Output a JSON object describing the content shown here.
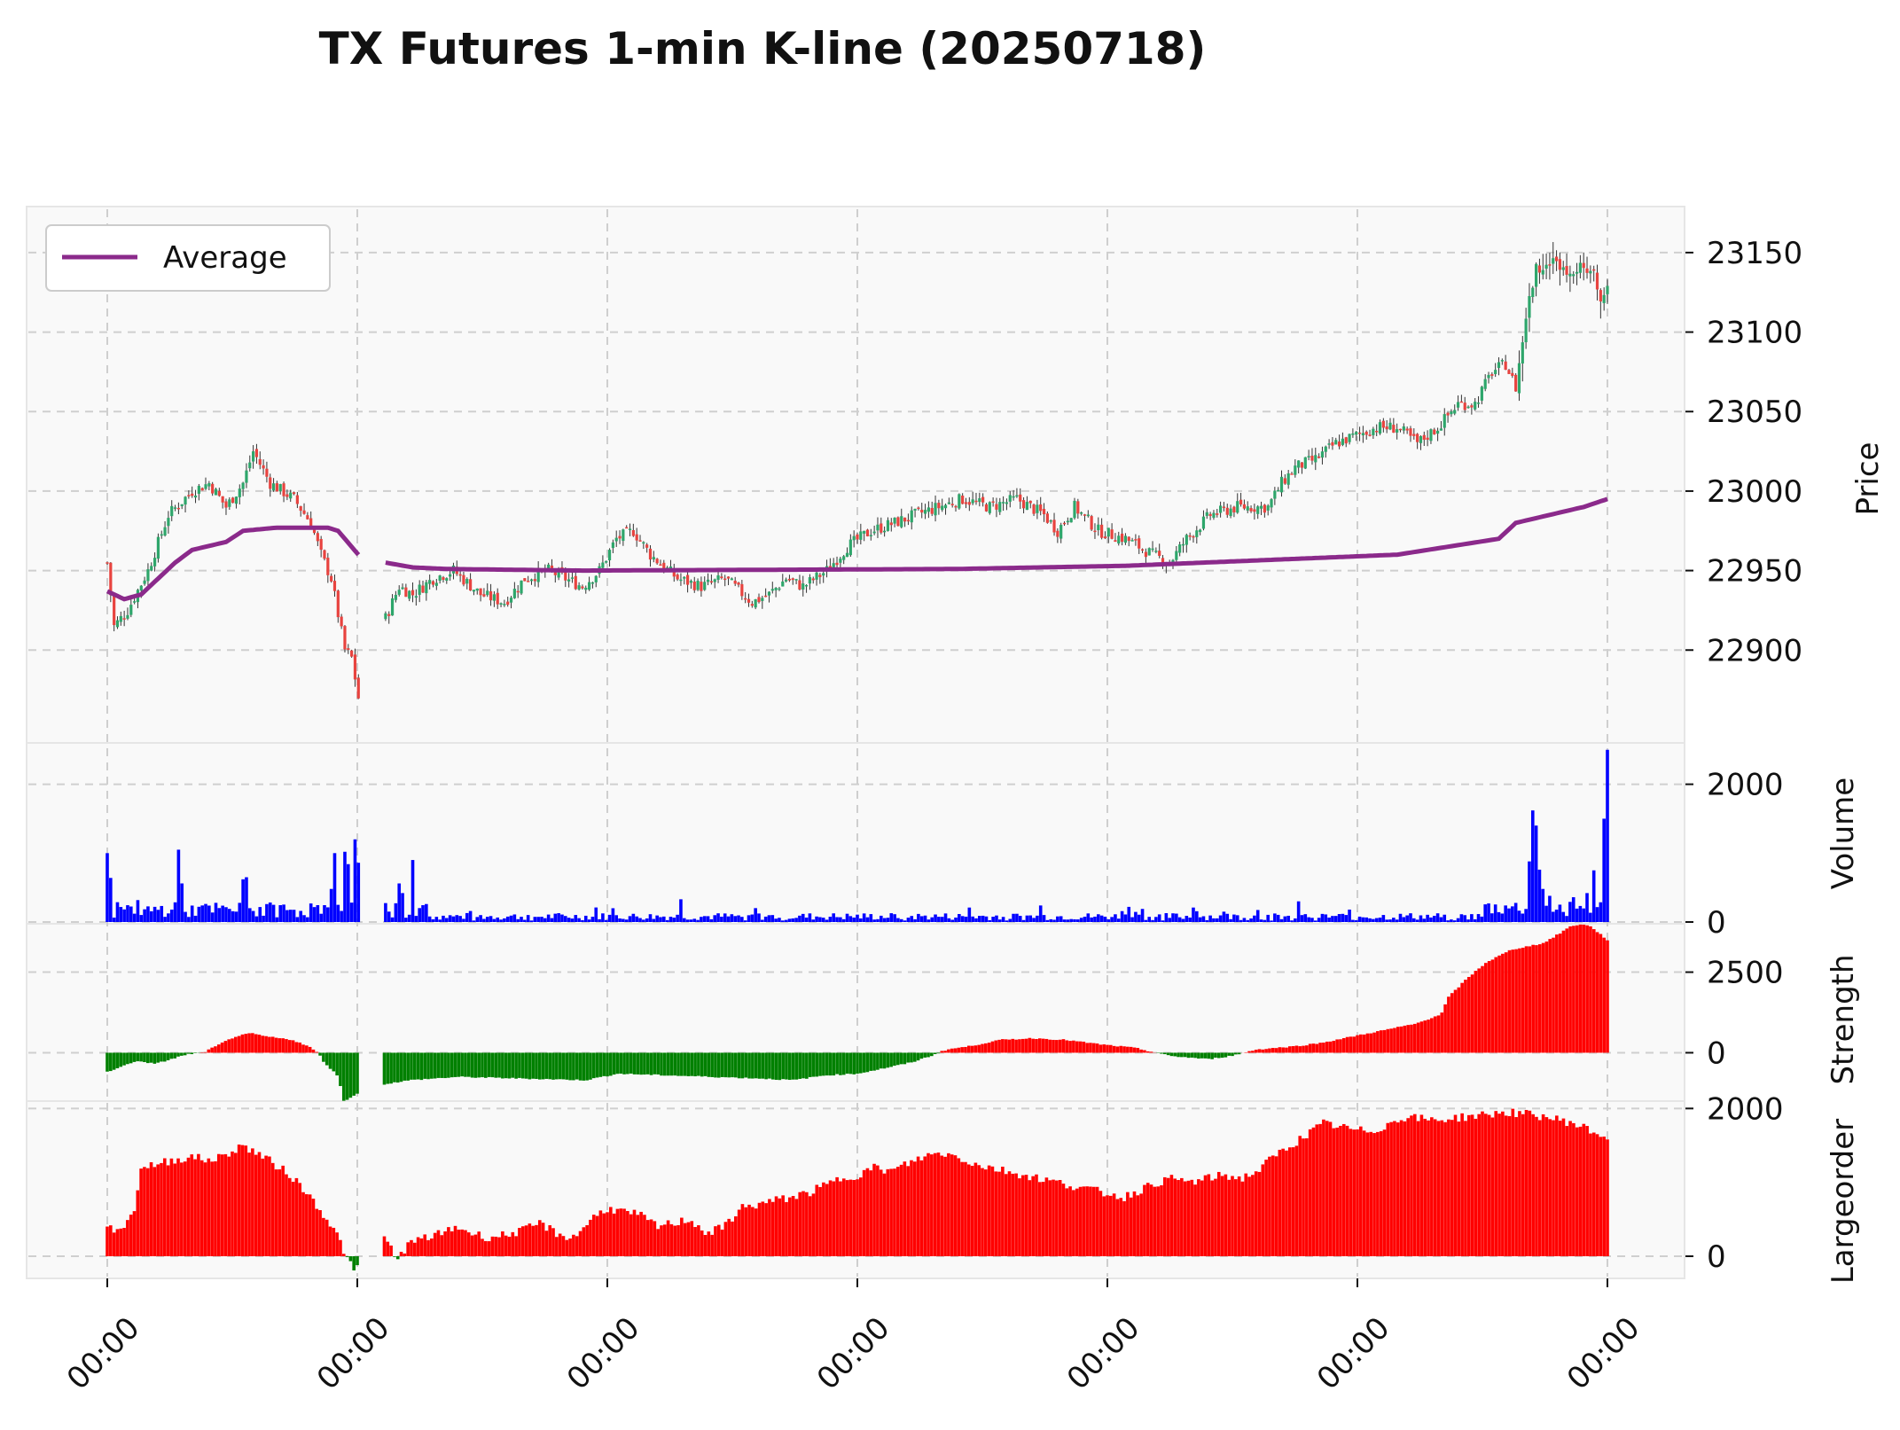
{
  "chart_data": {
    "type": "candlestick",
    "title": "TX Futures 1-min K-line (20250718)",
    "x_tick_labels": [
      "00:00",
      "00:00",
      "00:00",
      "00:00",
      "00:00",
      "00:00",
      "00:00"
    ],
    "legend": {
      "placement": "top-left",
      "entries": [
        "Average"
      ]
    },
    "colors": {
      "up": "#2ea66b",
      "down": "#e8433f",
      "average": "#8b2a8b",
      "volume": "#0000ff",
      "positive": "#ff0000",
      "negative": "#008000"
    },
    "panels": [
      {
        "name": "price",
        "ylabel": "Price",
        "ylim": [
          22860,
          23165
        ],
        "ticks": [
          22900,
          22950,
          23000,
          23050,
          23100,
          23150
        ],
        "close_anchors": [
          [
            0,
            22955
          ],
          [
            2,
            22915
          ],
          [
            6,
            22925
          ],
          [
            12,
            22950
          ],
          [
            18,
            22985
          ],
          [
            25,
            23000
          ],
          [
            30,
            23005
          ],
          [
            35,
            22990
          ],
          [
            40,
            23005
          ],
          [
            43,
            23025
          ],
          [
            48,
            23005
          ],
          [
            55,
            22995
          ],
          [
            60,
            22980
          ],
          [
            63,
            22960
          ],
          [
            66,
            22945
          ],
          [
            70,
            22900
          ],
          [
            72,
            22895
          ],
          [
            74,
            22870
          ],
          [
            78,
            22880
          ],
          [
            82,
            22920
          ],
          [
            86,
            22940
          ],
          [
            90,
            22935
          ],
          [
            96,
            22945
          ],
          [
            102,
            22950
          ],
          [
            110,
            22935
          ],
          [
            117,
            22930
          ],
          [
            123,
            22945
          ],
          [
            130,
            22950
          ],
          [
            135,
            22945
          ],
          [
            140,
            22940
          ],
          [
            145,
            22950
          ],
          [
            150,
            22970
          ],
          [
            155,
            22975
          ],
          [
            160,
            22960
          ],
          [
            168,
            22945
          ],
          [
            175,
            22940
          ],
          [
            182,
            22945
          ],
          [
            190,
            22930
          ],
          [
            195,
            22935
          ],
          [
            200,
            22945
          ],
          [
            205,
            22940
          ],
          [
            212,
            22950
          ],
          [
            218,
            22965
          ],
          [
            225,
            22975
          ],
          [
            232,
            22980
          ],
          [
            238,
            22985
          ],
          [
            245,
            22990
          ],
          [
            252,
            22995
          ],
          [
            260,
            22990
          ],
          [
            268,
            22995
          ],
          [
            276,
            22985
          ],
          [
            280,
            22975
          ],
          [
            285,
            22990
          ],
          [
            292,
            22975
          ],
          [
            300,
            22970
          ],
          [
            308,
            22960
          ],
          [
            313,
            22955
          ],
          [
            318,
            22970
          ],
          [
            325,
            22985
          ],
          [
            333,
            22990
          ],
          [
            342,
            22990
          ],
          [
            346,
            23005
          ],
          [
            350,
            23015
          ],
          [
            356,
            23020
          ],
          [
            362,
            23030
          ],
          [
            368,
            23035
          ],
          [
            374,
            23040
          ],
          [
            380,
            23040
          ],
          [
            386,
            23030
          ],
          [
            392,
            23040
          ],
          [
            398,
            23055
          ],
          [
            403,
            23055
          ],
          [
            408,
            23075
          ],
          [
            412,
            23080
          ],
          [
            415,
            23065
          ],
          [
            418,
            23110
          ],
          [
            421,
            23140
          ],
          [
            425,
            23145
          ],
          [
            430,
            23140
          ],
          [
            435,
            23140
          ],
          [
            438,
            23135
          ],
          [
            440,
            23120
          ],
          [
            442,
            23130
          ]
        ],
        "average_segments": [
          [
            [
              0,
              22937
            ],
            [
              5,
              22932
            ],
            [
              10,
              22935
            ],
            [
              20,
              22955
            ],
            [
              25,
              22963
            ],
            [
              35,
              22968
            ],
            [
              40,
              22975
            ],
            [
              50,
              22977
            ],
            [
              65,
              22977
            ],
            [
              68,
              22975
            ],
            [
              72,
              22965
            ],
            [
              74,
              22960
            ]
          ],
          [
            [
              82,
              22955
            ],
            [
              90,
              22952
            ],
            [
              100,
              22951
            ],
            [
              140,
              22950
            ],
            [
              250,
              22951
            ],
            [
              300,
              22953
            ],
            [
              380,
              22960
            ],
            [
              410,
              22970
            ],
            [
              415,
              22980
            ],
            [
              425,
              22985
            ],
            [
              435,
              22990
            ],
            [
              442,
              22995
            ]
          ]
        ]
      },
      {
        "name": "volume",
        "ylabel": "Volume",
        "ylim": [
          0,
          2600
        ],
        "ticks": [
          0,
          2000
        ],
        "spikes": [
          [
            0,
            1000
          ],
          [
            1,
            640
          ],
          [
            21,
            1050
          ],
          [
            22,
            560
          ],
          [
            40,
            620
          ],
          [
            41,
            650
          ],
          [
            66,
            480
          ],
          [
            67,
            1000
          ],
          [
            70,
            1020
          ],
          [
            71,
            840
          ],
          [
            73,
            1200
          ],
          [
            74,
            860
          ],
          [
            86,
            560
          ],
          [
            87,
            420
          ],
          [
            90,
            900
          ],
          [
            149,
            200
          ],
          [
            169,
            330
          ],
          [
            254,
            210
          ],
          [
            275,
            240
          ],
          [
            301,
            220
          ],
          [
            305,
            190
          ],
          [
            320,
            210
          ],
          [
            329,
            150
          ],
          [
            351,
            300
          ],
          [
            366,
            180
          ],
          [
            412,
            240
          ],
          [
            419,
            880
          ],
          [
            420,
            1620
          ],
          [
            421,
            1400
          ],
          [
            422,
            760
          ],
          [
            438,
            750
          ],
          [
            441,
            1500
          ],
          [
            442,
            2500
          ],
          [
            423,
            480
          ],
          [
            425,
            380
          ],
          [
            432,
            360
          ],
          [
            436,
            420
          ]
        ]
      },
      {
        "name": "strength",
        "ylabel": "Strength",
        "ylim": [
          -1500,
          4000
        ],
        "ticks": [
          0,
          2500
        ],
        "anchors": [
          [
            0,
            -600
          ],
          [
            5,
            -400
          ],
          [
            10,
            -250
          ],
          [
            15,
            -350
          ],
          [
            20,
            -200
          ],
          [
            25,
            -50
          ],
          [
            30,
            0
          ],
          [
            36,
            300
          ],
          [
            40,
            500
          ],
          [
            45,
            600
          ],
          [
            50,
            500
          ],
          [
            58,
            400
          ],
          [
            63,
            200
          ],
          [
            66,
            0
          ],
          [
            68,
            -300
          ],
          [
            70,
            -500
          ],
          [
            72,
            -700
          ],
          [
            73,
            -1000
          ],
          [
            74,
            -1500
          ],
          [
            82,
            -1100
          ],
          [
            85,
            -1000
          ],
          [
            95,
            -850
          ],
          [
            110,
            -750
          ],
          [
            130,
            -800
          ],
          [
            150,
            -850
          ],
          [
            160,
            -650
          ],
          [
            175,
            -700
          ],
          [
            190,
            -750
          ],
          [
            205,
            -800
          ],
          [
            215,
            -850
          ],
          [
            225,
            -700
          ],
          [
            235,
            -650
          ],
          [
            245,
            -450
          ],
          [
            252,
            -300
          ],
          [
            258,
            -100
          ],
          [
            263,
            100
          ],
          [
            270,
            200
          ],
          [
            280,
            400
          ],
          [
            290,
            450
          ],
          [
            300,
            400
          ],
          [
            312,
            250
          ],
          [
            322,
            150
          ],
          [
            333,
            -100
          ],
          [
            345,
            -200
          ],
          [
            352,
            -100
          ],
          [
            360,
            100
          ],
          [
            372,
            200
          ],
          [
            380,
            300
          ],
          [
            390,
            500
          ],
          [
            400,
            700
          ],
          [
            410,
            900
          ],
          [
            418,
            1200
          ],
          [
            420,
            1700
          ],
          [
            426,
            2300
          ],
          [
            432,
            2800
          ],
          [
            440,
            3200
          ],
          [
            450,
            3400
          ],
          [
            455,
            3700
          ],
          [
            458,
            3900
          ],
          [
            462,
            4000
          ],
          [
            465,
            3900
          ],
          [
            470,
            3500
          ]
        ]
      },
      {
        "name": "largeorder",
        "ylabel": "Largeorder",
        "ylim": [
          -300,
          2100
        ],
        "ticks": [
          0,
          2000
        ],
        "anchors": [
          [
            0,
            350
          ],
          [
            5,
            400
          ],
          [
            8,
            600
          ],
          [
            10,
            1200
          ],
          [
            15,
            1250
          ],
          [
            20,
            1300
          ],
          [
            25,
            1350
          ],
          [
            30,
            1300
          ],
          [
            35,
            1350
          ],
          [
            40,
            1500
          ],
          [
            45,
            1400
          ],
          [
            50,
            1250
          ],
          [
            55,
            1100
          ],
          [
            58,
            950
          ],
          [
            62,
            750
          ],
          [
            66,
            500
          ],
          [
            70,
            200
          ],
          [
            72,
            -50
          ],
          [
            74,
            -200
          ],
          [
            82,
            300
          ],
          [
            84,
            200
          ],
          [
            87,
            -50
          ],
          [
            90,
            150
          ],
          [
            95,
            250
          ],
          [
            100,
            300
          ],
          [
            105,
            400
          ],
          [
            110,
            300
          ],
          [
            115,
            250
          ],
          [
            120,
            300
          ],
          [
            125,
            350
          ],
          [
            130,
            450
          ],
          [
            135,
            300
          ],
          [
            140,
            250
          ],
          [
            145,
            500
          ],
          [
            150,
            650
          ],
          [
            155,
            600
          ],
          [
            160,
            550
          ],
          [
            165,
            400
          ],
          [
            170,
            450
          ],
          [
            175,
            500
          ],
          [
            180,
            300
          ],
          [
            185,
            400
          ],
          [
            190,
            650
          ],
          [
            195,
            700
          ],
          [
            200,
            750
          ],
          [
            205,
            800
          ],
          [
            210,
            850
          ],
          [
            215,
            950
          ],
          [
            220,
            1050
          ],
          [
            225,
            1100
          ],
          [
            230,
            1200
          ],
          [
            235,
            1150
          ],
          [
            240,
            1250
          ],
          [
            245,
            1350
          ],
          [
            250,
            1400
          ],
          [
            255,
            1350
          ],
          [
            260,
            1250
          ],
          [
            265,
            1200
          ],
          [
            270,
            1150
          ],
          [
            275,
            1100
          ],
          [
            280,
            1050
          ],
          [
            285,
            1000
          ],
          [
            290,
            950
          ],
          [
            295,
            900
          ],
          [
            300,
            850
          ],
          [
            305,
            800
          ],
          [
            310,
            900
          ],
          [
            315,
            1000
          ],
          [
            320,
            1050
          ],
          [
            325,
            1000
          ],
          [
            330,
            1050
          ],
          [
            335,
            1100
          ],
          [
            340,
            1050
          ],
          [
            345,
            1150
          ],
          [
            350,
            1350
          ],
          [
            355,
            1500
          ],
          [
            360,
            1650
          ],
          [
            365,
            1800
          ],
          [
            370,
            1750
          ],
          [
            375,
            1700
          ],
          [
            380,
            1700
          ],
          [
            385,
            1800
          ],
          [
            390,
            1900
          ],
          [
            395,
            1850
          ],
          [
            400,
            1850
          ],
          [
            410,
            1900
          ],
          [
            420,
            1950
          ],
          [
            430,
            1900
          ],
          [
            440,
            1800
          ],
          [
            450,
            1600
          ]
        ]
      }
    ],
    "n_candles": 443,
    "strength_bars": 445,
    "largeorder_bars": 445
  }
}
